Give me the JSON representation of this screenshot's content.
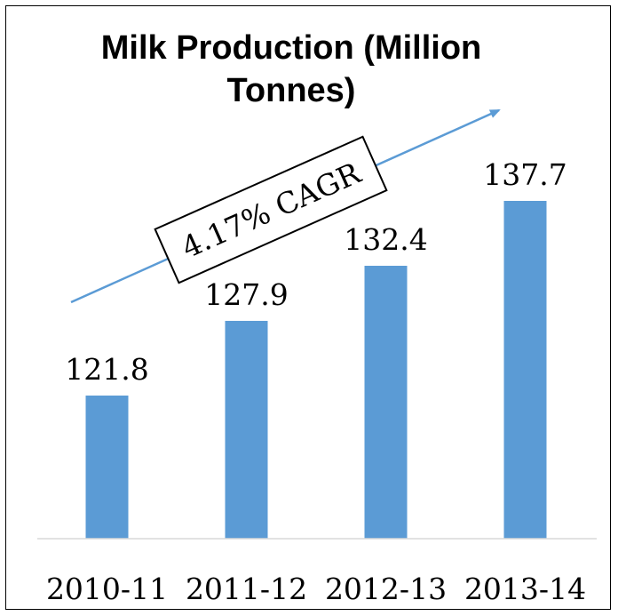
{
  "chart_data": {
    "type": "bar",
    "title_line1": "Milk Production  (Million",
    "title_line2": "Tonnes)",
    "categories": [
      "2010-11",
      "2011-12",
      "2012-13",
      "2013-14"
    ],
    "values": [
      121.8,
      127.9,
      132.4,
      137.7
    ],
    "value_labels": [
      "121.8",
      "127.9",
      "132.4",
      "137.7"
    ],
    "bar_color": "#5b9bd5",
    "annotation": "4.17% CAGR",
    "xlabel": "",
    "ylabel": "",
    "grid": false,
    "legend": "none"
  }
}
